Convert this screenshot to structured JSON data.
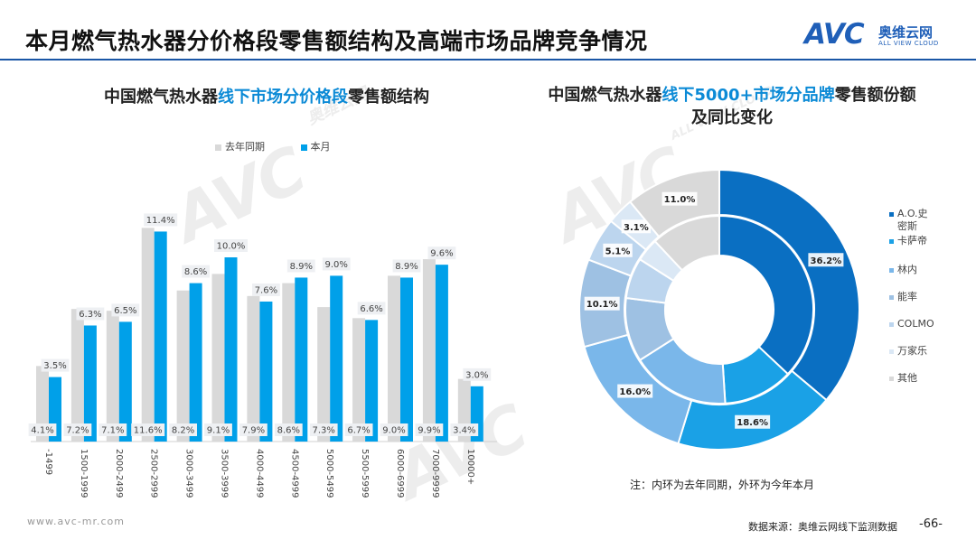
{
  "header": {
    "title": "本月燃气热水器分价格段零售额结构及高端市场品牌竞争情况",
    "logo_mark": "AVC",
    "logo_cn": "奥维云网",
    "logo_en": "ALL VIEW CLOUD"
  },
  "watermark": {
    "text": "AVC",
    "sub": "奥维云网",
    "sub_en": "ALL VIEW CLOUD"
  },
  "colors": {
    "accent": "#0b8ad6",
    "prev_bar": "#d9d9d9",
    "curr_bar": "#00a0e9",
    "rule": "#1a56a6"
  },
  "left_chart": {
    "title_parts": [
      "中国燃气热水器",
      "线下市场分价格段",
      "零售额结构"
    ]
  },
  "right_chart": {
    "title_parts": [
      "中国燃气热水器",
      "线下5000+市场分品牌",
      "零售额份额及同比变化"
    ],
    "note": "注：内环为去年同期，外环为今年本月"
  },
  "chart_data": [
    {
      "type": "bar",
      "title": "中国燃气热水器线下市场分价格段零售额结构",
      "categories": [
        "-1499",
        "1500-1999",
        "2000-2499",
        "2500-2999",
        "3000-3499",
        "3500-3999",
        "4000-4499",
        "4500-4999",
        "5000-5499",
        "5500-5999",
        "6000-6999",
        "7000-9999",
        "10000+"
      ],
      "series": [
        {
          "name": "去年同期",
          "values": [
            4.1,
            7.2,
            7.1,
            11.6,
            8.2,
            9.1,
            7.9,
            8.6,
            7.3,
            6.7,
            9.0,
            9.9,
            3.4
          ],
          "labels": [
            "4.1%",
            "7.2%",
            "7.1%",
            "11.6%",
            "8.2%",
            "9.1%",
            "7.9%",
            "8.6%",
            "7.3%",
            "6.7%",
            "9.0%",
            "9.9%",
            "3.4%"
          ]
        },
        {
          "name": "本月",
          "values": [
            3.5,
            6.3,
            6.5,
            11.4,
            8.6,
            10.0,
            7.6,
            8.9,
            9.0,
            6.6,
            8.9,
            9.6,
            3.0
          ],
          "labels": [
            "3.5%",
            "6.3%",
            "6.5%",
            "11.4%",
            "8.6%",
            "10.0%",
            "7.6%",
            "8.9%",
            "9.0%",
            "6.6%",
            "8.9%",
            "9.6%",
            "3.0%"
          ]
        }
      ],
      "ylim": [
        0,
        12.5
      ],
      "unit": "%",
      "legend": [
        "去年同期",
        "本月"
      ]
    },
    {
      "type": "pie",
      "subtype": "donut",
      "title": "中国燃气热水器线下5000+市场分品牌零售额份额及同比变化",
      "categories": [
        "A.O.史密斯",
        "卡萨帝",
        "林内",
        "能率",
        "COLMO",
        "万家乐",
        "其他"
      ],
      "colors": [
        "#0a6fc2",
        "#1aa1e6",
        "#7ab7ea",
        "#9ec1e3",
        "#bcd5ee",
        "#dbe8f5",
        "#d9d9d9"
      ],
      "series": [
        {
          "name": "外环 今年本月",
          "values": [
            36.2,
            18.6,
            16.0,
            10.1,
            5.1,
            3.1,
            11.0
          ],
          "labels": [
            "36.2%",
            "18.6%",
            "16.0%",
            "10.1%",
            "5.1%",
            "3.1%",
            "11.0%"
          ]
        },
        {
          "name": "内环 去年同期",
          "values": [
            37.0,
            12.0,
            17.0,
            11.0,
            7.0,
            4.0,
            12.0
          ]
        }
      ]
    }
  ],
  "footer": {
    "url": "www.avc-mr.com",
    "source": "数据来源：奥维云网线下监测数据",
    "page": "-66-"
  }
}
